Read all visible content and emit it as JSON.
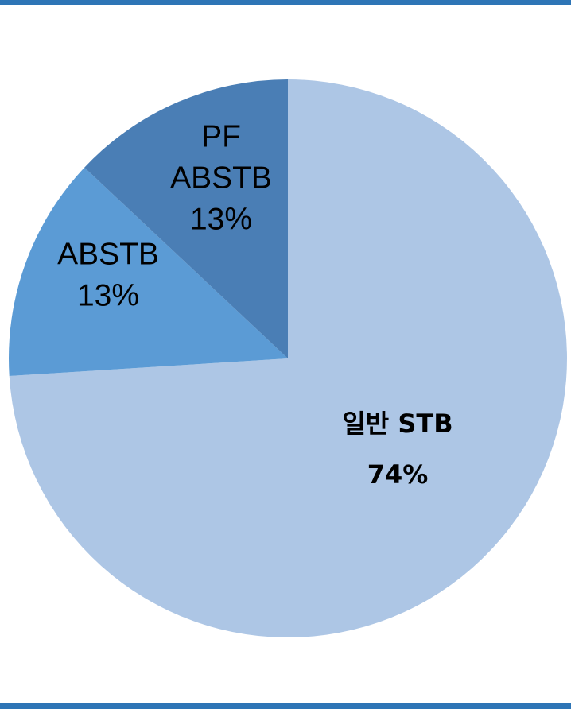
{
  "chart_data": {
    "type": "pie",
    "slices": [
      {
        "label": "일반 STB",
        "value": 74,
        "color": "#adc6e5",
        "label_lines": [
          "일반 STB",
          "74%"
        ]
      },
      {
        "label": "ABSTB",
        "value": 13,
        "color": "#5b9bd5",
        "label_lines": [
          "ABSTB",
          "13%"
        ]
      },
      {
        "label": "PF ABSTB",
        "value": 13,
        "color": "#4a7eb5",
        "label_lines": [
          "PF",
          "ABSTB",
          "13%"
        ]
      }
    ],
    "start_angle": "12 o'clock",
    "direction": "clockwise",
    "legend": "none",
    "title": ""
  }
}
